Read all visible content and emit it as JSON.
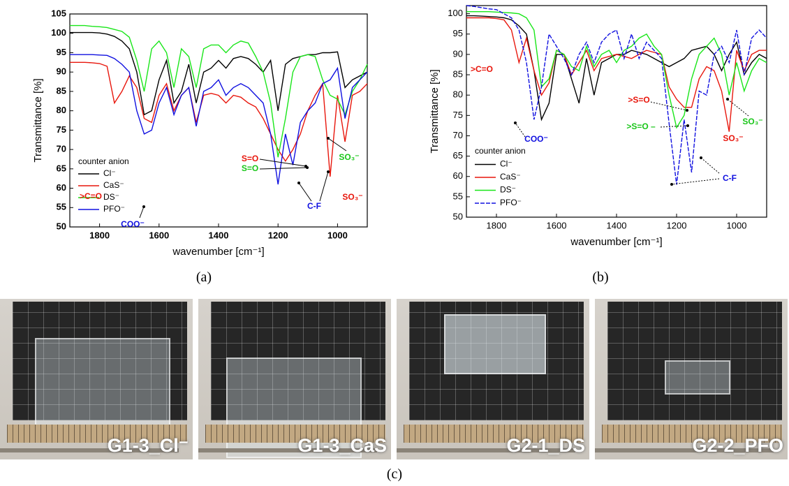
{
  "chart_data": [
    {
      "type": "line",
      "xlabel": "wavenumber [cm⁻¹]",
      "ylabel": "Transmittance [%]",
      "xlim": [
        1900,
        900
      ],
      "xticks": [
        1800,
        1600,
        1400,
        1200,
        1000
      ],
      "ylim": [
        50,
        105
      ],
      "yticks": [
        50,
        55,
        60,
        65,
        70,
        75,
        80,
        85,
        90,
        95,
        100,
        105
      ],
      "grid": false,
      "legend_title": "counter anion",
      "legend": "lower left",
      "x": [
        1900,
        1875,
        1850,
        1825,
        1800,
        1775,
        1750,
        1725,
        1700,
        1675,
        1650,
        1625,
        1600,
        1575,
        1550,
        1525,
        1500,
        1475,
        1450,
        1425,
        1400,
        1375,
        1350,
        1325,
        1300,
        1275,
        1250,
        1225,
        1200,
        1175,
        1150,
        1125,
        1100,
        1075,
        1050,
        1025,
        1000,
        975,
        950,
        925,
        900
      ],
      "series": [
        {
          "name": "Cl⁻",
          "color": "#000000",
          "values": [
            100.2,
            100.2,
            100.2,
            100.2,
            100.1,
            99.8,
            99.2,
            98,
            96,
            90,
            79,
            80,
            88,
            93,
            82,
            85,
            92,
            82,
            90,
            91,
            93,
            91,
            93.5,
            94,
            93.5,
            92,
            90,
            93,
            80,
            92,
            93.5,
            94,
            94.5,
            94.5,
            95,
            95,
            95.2,
            86,
            88,
            89,
            90
          ]
        },
        {
          "name": "CaS⁻",
          "color": "#e8160c",
          "values": [
            92.5,
            92.5,
            92.5,
            92.4,
            92.2,
            91.5,
            82,
            85,
            89,
            86,
            78,
            77,
            84,
            87,
            80,
            84,
            86,
            77,
            84,
            84.5,
            84,
            82,
            84,
            83.5,
            82,
            81,
            78,
            74,
            70,
            67,
            70,
            74,
            80,
            84,
            87,
            63,
            84,
            72,
            84,
            85,
            87
          ]
        },
        {
          "name": "DS⁻",
          "color": "#19e619",
          "values": [
            102,
            102,
            102,
            101.8,
            101.7,
            101.5,
            101,
            100.5,
            99,
            93,
            85,
            96,
            98,
            95,
            86,
            96,
            94,
            86,
            96,
            97,
            97,
            95,
            97,
            98,
            97.5,
            94,
            90,
            82,
            68,
            78,
            90,
            94,
            94.5,
            94,
            88,
            84,
            83,
            79,
            85,
            88,
            92
          ]
        },
        {
          "name": "PFO⁻",
          "color": "#1010e0",
          "values": [
            94.5,
            94.5,
            94.5,
            94.5,
            94.4,
            94.3,
            93.5,
            92,
            90,
            80,
            74,
            75,
            82,
            86,
            79,
            84,
            86,
            76,
            85,
            86,
            88,
            84,
            86,
            87,
            86,
            84,
            82,
            74,
            61,
            74,
            66,
            77,
            80,
            82,
            87,
            88,
            91,
            78,
            86,
            88,
            90
          ]
        }
      ],
      "annotations": [
        {
          "text": ">C=O",
          "color": "#e8160c"
        },
        {
          "text": "COO⁻",
          "color": "#1010e0"
        },
        {
          "text": "S=O",
          "color": "#e8160c"
        },
        {
          "text": "S=O",
          "color": "#19c619"
        },
        {
          "text": "C-F",
          "color": "#1010e0"
        },
        {
          "text": "SO₃⁻",
          "color": "#19c619"
        },
        {
          "text": "SO₃⁻",
          "color": "#e8160c"
        }
      ]
    },
    {
      "type": "line",
      "xlabel": "wavenumber [cm⁻¹]",
      "ylabel": "Transmittance [%]",
      "xlim": [
        1900,
        900
      ],
      "xticks": [
        1800,
        1600,
        1400,
        1200,
        1000
      ],
      "ylim": [
        50,
        102
      ],
      "yticks": [
        50,
        55,
        60,
        65,
        70,
        75,
        80,
        85,
        90,
        95,
        100
      ],
      "grid": false,
      "legend_title": "counter anion",
      "legend": "lower left",
      "x": [
        1900,
        1875,
        1850,
        1825,
        1800,
        1775,
        1750,
        1725,
        1700,
        1675,
        1650,
        1625,
        1600,
        1575,
        1550,
        1525,
        1500,
        1475,
        1450,
        1425,
        1400,
        1375,
        1350,
        1325,
        1300,
        1275,
        1250,
        1225,
        1200,
        1175,
        1150,
        1125,
        1100,
        1075,
        1050,
        1025,
        1000,
        975,
        950,
        925,
        900
      ],
      "series": [
        {
          "name": "Cl⁻",
          "color": "#000000",
          "values": [
            99.5,
            99.5,
            99.4,
            99.3,
            99.2,
            99,
            98.5,
            97,
            95,
            86,
            74,
            78,
            90,
            90,
            84,
            78,
            89,
            80,
            88,
            89,
            90,
            90,
            91,
            90.5,
            90,
            89,
            88,
            87,
            88,
            89,
            91,
            91.5,
            92,
            90,
            86,
            90,
            93,
            85,
            88,
            90,
            89
          ]
        },
        {
          "name": "CaS⁻",
          "color": "#e8160c",
          "values": [
            99,
            99,
            99,
            99,
            98.8,
            98.5,
            96,
            88,
            94,
            86,
            80,
            83,
            91,
            90,
            85,
            88,
            91,
            86,
            89,
            89.5,
            90,
            89.5,
            89,
            90,
            91,
            90.5,
            90,
            82,
            79,
            77,
            77,
            84,
            87,
            86,
            81,
            71,
            91,
            86,
            90,
            91,
            91
          ]
        },
        {
          "name": "DS⁻",
          "color": "#19e619",
          "values": [
            100.5,
            100.5,
            100.5,
            100.5,
            100.4,
            100.3,
            100.2,
            100,
            99,
            96,
            82,
            84,
            91,
            90,
            87,
            86,
            92,
            87,
            90,
            91,
            88,
            91,
            92,
            94,
            95,
            92,
            90,
            80,
            72,
            75,
            84,
            90,
            92,
            94,
            90,
            80,
            88,
            81,
            86,
            89,
            88
          ]
        },
        {
          "name": "PFO⁻",
          "color": "#1010e0",
          "linestyle": "dashed",
          "values": [
            102,
            101.8,
            101.5,
            101.2,
            101,
            100,
            99,
            96,
            88,
            74,
            82,
            95,
            92,
            89,
            85,
            90,
            93,
            88,
            93,
            95,
            96,
            89,
            95,
            89,
            93,
            91,
            89,
            73,
            58,
            74,
            61,
            81,
            80,
            90,
            92,
            88,
            96,
            85,
            94,
            96,
            94
          ]
        }
      ],
      "annotations": [
        {
          "text": ">C=O",
          "color": "#e8160c"
        },
        {
          "text": "COO⁻",
          "color": "#1010e0"
        },
        {
          "text": ">S=O",
          "color": "#e8160c"
        },
        {
          "text": ">S=O –",
          "color": "#19c619"
        },
        {
          "text": "C-F",
          "color": "#1010e0"
        },
        {
          "text": "SO₃⁻",
          "color": "#19c619"
        },
        {
          "text": "SO₃⁻",
          "color": "#e8160c"
        }
      ]
    }
  ],
  "panel_labels": [
    "(a)",
    "(b)",
    "(c)"
  ],
  "photos": [
    {
      "caption": "G1-3_Cl⁻"
    },
    {
      "caption": "G1-3_CaS"
    },
    {
      "caption": "G2-1_DS"
    },
    {
      "caption": "G2-2_PFO"
    }
  ]
}
